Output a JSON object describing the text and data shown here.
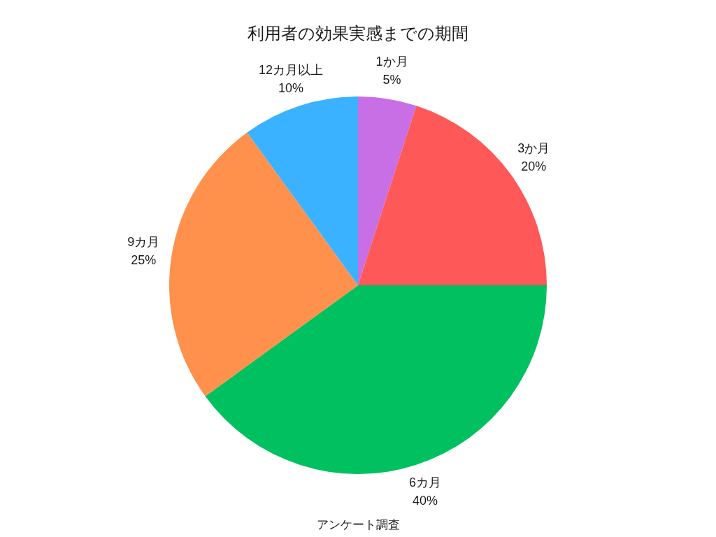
{
  "chart_data": {
    "type": "pie",
    "title": "利用者の効果実感までの期間",
    "categories": [
      "1か月",
      "3か月",
      "6カ月",
      "9カ月",
      "12カ月以上"
    ],
    "values": [
      5,
      20,
      40,
      25,
      10
    ],
    "colors": [
      "#c86fe6",
      "#ff5858",
      "#00c060",
      "#ff914d",
      "#3bb2ff"
    ],
    "value_labels": [
      "5%",
      "20%",
      "40%",
      "25%",
      "10%"
    ],
    "annotations": [
      "アンケート調査"
    ]
  }
}
